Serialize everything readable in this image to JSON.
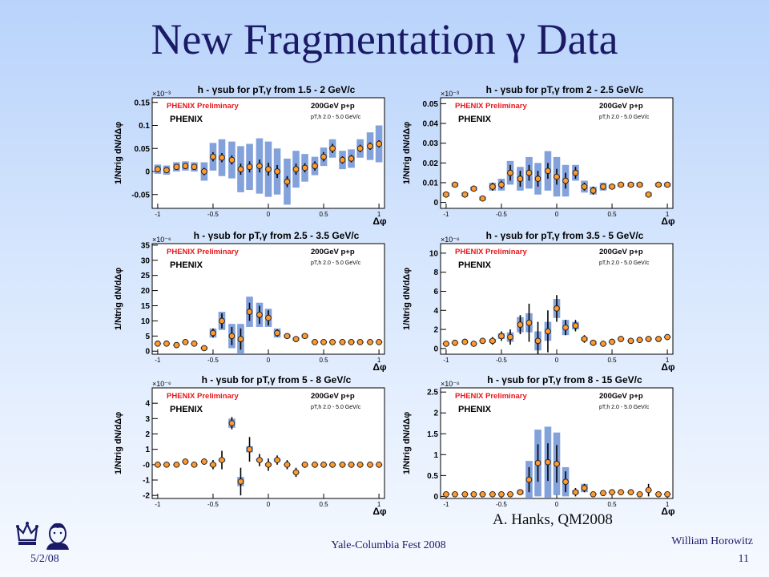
{
  "slide": {
    "title": "New Fragmentation γ Data",
    "credit": "A. Hanks, QM2008",
    "date": "5/2/08",
    "event": "Yale-Columbia Fest 2008",
    "author": "William Horowitz",
    "slide_number": "11"
  },
  "logos": {
    "crown_icon": "crown-icon",
    "portrait_icon": "portrait-icon"
  },
  "colors": {
    "marker_fill": "#ff9a2e",
    "marker_edge": "#1a1a1a",
    "syst_band": "#6d92d6",
    "plot_bg": "#ffffff",
    "prelim": "#e8161c"
  },
  "chart_data": [
    {
      "type": "scatter",
      "title": "h - γsub for pT,γ from 1.5 - 2 GeV/c",
      "ylabel": "1/Ntrig dN/dΔφ",
      "xlabel": "Δφ",
      "yscale_label": "×10⁻³",
      "annotations": [
        "PHENIX Preliminary",
        "200GeV p+p",
        "pT,h 2.0 - 5.0 GeV/c",
        "PHENIX"
      ],
      "xlim": [
        -1.05,
        1.05
      ],
      "ylim": [
        -0.08,
        0.16
      ],
      "xticks": [
        -1,
        -0.5,
        0,
        0.5,
        1
      ],
      "xtick_labels": [
        "-1",
        "-0.5",
        "0",
        "0.5",
        "1"
      ],
      "yticks": [
        -0.05,
        0,
        0.05,
        0.1,
        0.15
      ],
      "ytick_labels": [
        "-0.05",
        "0",
        "0.05",
        "0.1",
        "0.15"
      ],
      "x": [
        -1,
        -0.92,
        -0.83,
        -0.75,
        -0.67,
        -0.58,
        -0.5,
        -0.42,
        -0.33,
        -0.25,
        -0.17,
        -0.08,
        0,
        0.08,
        0.17,
        0.25,
        0.33,
        0.42,
        0.5,
        0.58,
        0.67,
        0.75,
        0.83,
        0.92,
        1
      ],
      "y": [
        0.005,
        0.003,
        0.01,
        0.012,
        0.01,
        0,
        0.032,
        0.03,
        0.025,
        0.005,
        0.01,
        0.012,
        0.005,
        0,
        -0.022,
        0.005,
        0.008,
        0.012,
        0.032,
        0.05,
        0.025,
        0.028,
        0.05,
        0.055,
        0.06
      ],
      "syst": [
        0.01,
        0.01,
        0.01,
        0.01,
        0.01,
        0.02,
        0.03,
        0.04,
        0.04,
        0.05,
        0.05,
        0.06,
        0.06,
        0.05,
        0.05,
        0.04,
        0.03,
        0.02,
        0.02,
        0.02,
        0.02,
        0.02,
        0.02,
        0.03,
        0.04
      ],
      "err": [
        0.006,
        0.006,
        0.006,
        0.006,
        0.005,
        0.008,
        0.01,
        0.01,
        0.01,
        0.012,
        0.012,
        0.014,
        0.014,
        0.014,
        0.012,
        0.012,
        0.01,
        0.01,
        0.01,
        0.01,
        0.008,
        0.008,
        0.008,
        0.008,
        0.008
      ]
    },
    {
      "type": "scatter",
      "title": "h - γsub for pT,γ from 2 - 2.5 GeV/c",
      "ylabel": "1/Ntrig dN/dΔφ",
      "xlabel": "Δφ",
      "yscale_label": "×10⁻³",
      "annotations": [
        "PHENIX Preliminary",
        "200GeV p+p",
        "pT,h 2.0 - 5.0 GeV/c",
        "PHENIX"
      ],
      "xlim": [
        -1.05,
        1.05
      ],
      "ylim": [
        -0.003,
        0.053
      ],
      "xticks": [
        -1,
        -0.5,
        0,
        0.5,
        1
      ],
      "xtick_labels": [
        "-1",
        "-0.5",
        "0",
        "0.5",
        "1"
      ],
      "yticks": [
        0,
        0.01,
        0.02,
        0.03,
        0.04,
        0.05
      ],
      "ytick_labels": [
        "0",
        "0.01",
        "0.02",
        "0.03",
        "0.04",
        "0.05"
      ],
      "x": [
        -1,
        -0.92,
        -0.83,
        -0.75,
        -0.67,
        -0.58,
        -0.5,
        -0.42,
        -0.33,
        -0.25,
        -0.17,
        -0.08,
        0,
        0.08,
        0.17,
        0.25,
        0.33,
        0.42,
        0.5,
        0.58,
        0.67,
        0.75,
        0.83,
        0.92,
        1
      ],
      "y": [
        0.004,
        0.009,
        0.004,
        0.007,
        0.002,
        0.008,
        0.009,
        0.015,
        0.012,
        0.015,
        0.012,
        0.016,
        0.013,
        0.011,
        0.015,
        0.008,
        0.006,
        0.008,
        0.008,
        0.009,
        0.009,
        0.009,
        0.004,
        0.009,
        0.009
      ],
      "syst": [
        0.001,
        0.001,
        0.001,
        0.001,
        0.001,
        0.002,
        0.003,
        0.006,
        0.006,
        0.008,
        0.008,
        0.01,
        0.01,
        0.008,
        0.004,
        0.003,
        0.002,
        0.002,
        0.001,
        0.001,
        0.001,
        0.001,
        0.001,
        0.001,
        0.001
      ],
      "err": [
        0.001,
        0.001,
        0.001,
        0.001,
        0.001,
        0.002,
        0.002,
        0.004,
        0.004,
        0.004,
        0.004,
        0.004,
        0.004,
        0.004,
        0.003,
        0.002,
        0.002,
        0.001,
        0.001,
        0.001,
        0.001,
        0.001,
        0.001,
        0.001,
        0.001
      ]
    },
    {
      "type": "scatter",
      "title": "h - γsub for pT,γ from 2.5 - 3.5 GeV/c",
      "ylabel": "1/Ntrig dN/dΔφ",
      "xlabel": "Δφ",
      "yscale_label": "×10⁻⁶",
      "annotations": [
        "PHENIX Preliminary",
        "200GeV p+p",
        "pT,h 2.0 - 5.0 GeV/c",
        "PHENIX"
      ],
      "xlim": [
        -1.05,
        1.05
      ],
      "ylim": [
        -1,
        35.5
      ],
      "xticks": [
        -1,
        -0.5,
        0,
        0.5,
        1
      ],
      "xtick_labels": [
        "-1",
        "-0.5",
        "0",
        "0.5",
        "1"
      ],
      "yticks": [
        0,
        5,
        10,
        15,
        20,
        25,
        30,
        35
      ],
      "ytick_labels": [
        "0",
        "5",
        "10",
        "15",
        "20",
        "25",
        "30",
        "35"
      ],
      "x": [
        -1,
        -0.92,
        -0.83,
        -0.75,
        -0.67,
        -0.58,
        -0.5,
        -0.42,
        -0.33,
        -0.25,
        -0.17,
        -0.08,
        0,
        0.08,
        0.17,
        0.25,
        0.33,
        0.42,
        0.5,
        0.58,
        0.67,
        0.75,
        0.83,
        0.92,
        1
      ],
      "y": [
        2.5,
        2.5,
        2,
        3,
        2.5,
        1,
        6,
        10,
        5,
        4,
        13,
        12,
        11,
        6,
        5,
        4,
        5,
        3,
        3,
        3,
        3,
        3,
        3,
        3,
        3
      ],
      "syst": [
        0.3,
        0.3,
        0.3,
        0.3,
        0.3,
        0.5,
        1.5,
        3,
        4,
        5,
        5,
        4,
        3,
        1.5,
        0.5,
        0.5,
        0.5,
        0.3,
        0.3,
        0.3,
        0.3,
        0.3,
        0.3,
        0.3,
        0.3
      ],
      "err": [
        0.5,
        0.5,
        0.5,
        0.5,
        0.5,
        0.8,
        1.5,
        2.5,
        3,
        3.5,
        3,
        3,
        2.5,
        1.2,
        0.8,
        0.8,
        0.8,
        0.5,
        0.5,
        0.5,
        0.5,
        0.5,
        0.5,
        0.5,
        0.5
      ]
    },
    {
      "type": "scatter",
      "title": "h - γsub for pT,γ from 3.5 - 5 GeV/c",
      "ylabel": "1/Ntrig dN/dΔφ",
      "xlabel": "Δφ",
      "yscale_label": "×10⁻⁶",
      "annotations": [
        "PHENIX Preliminary",
        "200GeV p+p",
        "pT,h 2.0 - 5.0 GeV/c",
        "PHENIX"
      ],
      "xlim": [
        -1.05,
        1.05
      ],
      "ylim": [
        -0.6,
        11
      ],
      "xticks": [
        -1,
        -0.5,
        0,
        0.5,
        1
      ],
      "xtick_labels": [
        "-1",
        "-0.5",
        "0",
        "0.5",
        "1"
      ],
      "yticks": [
        0,
        2,
        4,
        6,
        8,
        10
      ],
      "ytick_labels": [
        "0",
        "2",
        "4",
        "6",
        "8",
        "10"
      ],
      "x": [
        -1,
        -0.92,
        -0.83,
        -0.75,
        -0.67,
        -0.58,
        -0.5,
        -0.42,
        -0.33,
        -0.25,
        -0.17,
        -0.08,
        0,
        0.08,
        0.17,
        0.25,
        0.33,
        0.42,
        0.5,
        0.58,
        0.67,
        0.75,
        0.83,
        0.92,
        1
      ],
      "y": [
        0.5,
        0.6,
        0.7,
        0.5,
        0.8,
        0.8,
        1.3,
        1.2,
        2.5,
        2.7,
        0.8,
        1.8,
        4.2,
        2.2,
        2.4,
        1,
        0.6,
        0.5,
        0.7,
        1,
        0.8,
        0.9,
        1,
        1,
        1.2
      ],
      "syst": [
        0.1,
        0.1,
        0.1,
        0.1,
        0.1,
        0.2,
        0.3,
        0.5,
        0.8,
        1,
        1,
        1,
        1,
        0.8,
        0.4,
        0.2,
        0.2,
        0.1,
        0.1,
        0.1,
        0.1,
        0.1,
        0.1,
        0.1,
        0.1
      ],
      "err": [
        0.3,
        0.3,
        0.3,
        0.3,
        0.3,
        0.4,
        0.5,
        0.8,
        1,
        2,
        2,
        2.2,
        1.4,
        0.8,
        0.6,
        0.4,
        0.3,
        0.3,
        0.3,
        0.3,
        0.3,
        0.3,
        0.3,
        0.3,
        0.3
      ]
    },
    {
      "type": "scatter",
      "title": "h - γsub for pT,γ from 5 - 8 GeV/c",
      "ylabel": "1/Ntrig dN/dΔφ",
      "xlabel": "Δφ",
      "yscale_label": "×10⁻⁶",
      "annotations": [
        "PHENIX Preliminary",
        "200GeV p+p",
        "pT,h 2.0 - 5.0 GeV/c",
        "PHENIX"
      ],
      "xlim": [
        -1.05,
        1.05
      ],
      "ylim": [
        -2.2,
        5
      ],
      "xticks": [
        -1,
        -0.5,
        0,
        0.5,
        1
      ],
      "xtick_labels": [
        "-1",
        "-0.5",
        "0",
        "0.5",
        "1"
      ],
      "yticks": [
        -2,
        -1,
        0,
        1,
        2,
        3,
        4
      ],
      "ytick_labels": [
        "-2",
        "-1",
        "-0",
        "1",
        "2",
        "3",
        "4"
      ],
      "x": [
        -1,
        -0.92,
        -0.83,
        -0.75,
        -0.67,
        -0.58,
        -0.5,
        -0.42,
        -0.33,
        -0.25,
        -0.17,
        -0.08,
        0,
        0.08,
        0.17,
        0.25,
        0.33,
        0.42,
        0.5,
        0.58,
        0.67,
        0.75,
        0.83,
        0.92,
        1
      ],
      "y": [
        0,
        0,
        0,
        0.2,
        0,
        0.2,
        0,
        0.3,
        2.7,
        -1.1,
        1,
        0.3,
        0,
        0.3,
        0,
        -0.5,
        0,
        0,
        0,
        0,
        0,
        0,
        0,
        0,
        0
      ],
      "syst": [
        0.05,
        0.05,
        0.05,
        0.05,
        0.05,
        0.05,
        0.1,
        0.1,
        0.3,
        0.3,
        0.2,
        0.1,
        0.1,
        0.1,
        0.05,
        0.05,
        0.05,
        0.05,
        0.05,
        0.05,
        0.05,
        0.05,
        0.05,
        0.05,
        0.05
      ],
      "err": [
        0.15,
        0.15,
        0.15,
        0.15,
        0.15,
        0.2,
        0.3,
        0.6,
        0.4,
        0.9,
        0.8,
        0.4,
        0.4,
        0.3,
        0.3,
        0.3,
        0.2,
        0.2,
        0.2,
        0.2,
        0.2,
        0.2,
        0.2,
        0.2,
        0.2
      ]
    },
    {
      "type": "scatter",
      "title": "h - γsub for pT,γ from 8 - 15 GeV/c",
      "ylabel": "1/Ntrig dN/dΔφ",
      "xlabel": "Δφ",
      "yscale_label": "×10⁻⁶",
      "annotations": [
        "PHENIX Preliminary",
        "200GeV p+p",
        "pT,h 2.0 - 5.0 GeV/c",
        "PHENIX"
      ],
      "xlim": [
        -1.05,
        1.05
      ],
      "ylim": [
        -0.05,
        2.6
      ],
      "xticks": [
        -1,
        -0.5,
        0,
        0.5,
        1
      ],
      "xtick_labels": [
        "-1",
        "-0.5",
        "0",
        "0.5",
        "1"
      ],
      "yticks": [
        0,
        0.5,
        1,
        1.5,
        2,
        2.5
      ],
      "ytick_labels": [
        "0",
        "0.5",
        "1",
        "1.5",
        "2",
        "2.5"
      ],
      "x": [
        -1,
        -0.92,
        -0.83,
        -0.75,
        -0.67,
        -0.58,
        -0.5,
        -0.42,
        -0.33,
        -0.25,
        -0.17,
        -0.08,
        0,
        0.08,
        0.17,
        0.25,
        0.33,
        0.42,
        0.5,
        0.58,
        0.67,
        0.75,
        0.83,
        0.92,
        1
      ],
      "y": [
        0.05,
        0.05,
        0.05,
        0.05,
        0.05,
        0.05,
        0.05,
        0.05,
        0.1,
        0.4,
        0.8,
        0.82,
        0.78,
        0.35,
        0.1,
        0.2,
        0.05,
        0.08,
        0.1,
        0.1,
        0.1,
        0.05,
        0.15,
        0.05,
        0.05
      ],
      "syst": [
        0.02,
        0.02,
        0.02,
        0.02,
        0.02,
        0.02,
        0.02,
        0.02,
        0.05,
        0.45,
        0.8,
        0.85,
        0.75,
        0.35,
        0.05,
        0.1,
        0.02,
        0.02,
        0.02,
        0.02,
        0.02,
        0.02,
        0.02,
        0.02,
        0.02
      ],
      "err": [
        0.03,
        0.03,
        0.03,
        0.03,
        0.03,
        0.03,
        0.03,
        0.03,
        0.05,
        0.3,
        0.45,
        0.45,
        0.45,
        0.25,
        0.1,
        0.1,
        0.05,
        0.05,
        0.05,
        0.05,
        0.05,
        0.05,
        0.15,
        0.05,
        0.05
      ]
    }
  ]
}
